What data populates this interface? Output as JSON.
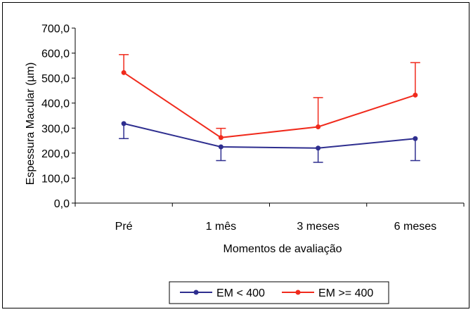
{
  "chart_data": {
    "type": "line",
    "xlabel": "Momentos de avaliação",
    "ylabel": "Espessura Macular (µm)",
    "categories": [
      "Pré",
      "1 mês",
      "3 meses",
      "6 meses"
    ],
    "yticks": [
      "0,0",
      "100,0",
      "200,0",
      "300,0",
      "400,0",
      "500,0",
      "600,0",
      "700,0"
    ],
    "ylim": [
      0,
      700
    ],
    "grid": false,
    "legend_position": "bottom",
    "series": [
      {
        "name": "EM < 400",
        "color": "#2e2e8f",
        "values": [
          318,
          225,
          220,
          258
        ],
        "error_direction": "down",
        "error_values": [
          60,
          55,
          57,
          88
        ]
      },
      {
        "name": "EM >= 400",
        "color": "#f02a1c",
        "values": [
          522,
          262,
          305,
          432
        ],
        "error_direction": "up",
        "error_values": [
          72,
          37,
          117,
          130
        ]
      }
    ]
  }
}
